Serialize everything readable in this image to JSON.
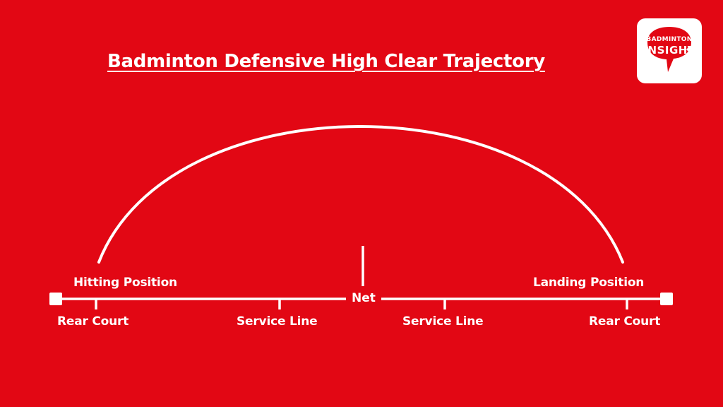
{
  "title": "Badminton Defensive High Clear Trajectory",
  "logo": {
    "line1": "BADMINTON",
    "line2": "INSIGHT"
  },
  "colors": {
    "background": "#e20714",
    "foreground": "#ffffff",
    "logo_background": "#ffffff",
    "logo_bubble": "#e20714"
  },
  "positions": {
    "hitting": "Hitting Position",
    "landing": "Landing Position"
  },
  "court": {
    "net": "Net",
    "markers": [
      {
        "label": "Rear Court"
      },
      {
        "label": "Service Line"
      },
      {
        "label": "Service Line"
      },
      {
        "label": "Rear Court"
      }
    ]
  }
}
